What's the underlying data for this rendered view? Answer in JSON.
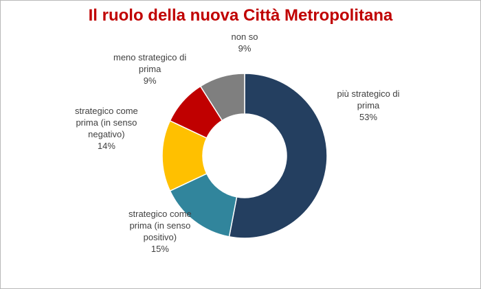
{
  "chart_data": {
    "type": "pie",
    "variant": "donut",
    "title": "Il ruolo della nuova Città Metropolitana",
    "slices": [
      {
        "name": "più strategico di prima",
        "label_lines": [
          "più strategico di",
          "prima"
        ],
        "value": 53,
        "value_label": "53%",
        "color": "#243F60"
      },
      {
        "name": "strategico come prima (in senso positivo)",
        "label_lines": [
          "strategico come",
          "prima (in senso",
          "positivo)"
        ],
        "value": 15,
        "value_label": "15%",
        "color": "#31859C"
      },
      {
        "name": "strategico come prima (in senso negativo)",
        "label_lines": [
          "strategico come",
          "prima (in senso",
          "negativo)"
        ],
        "value": 14,
        "value_label": "14%",
        "color": "#FFC000"
      },
      {
        "name": "meno strategico di prima",
        "label_lines": [
          "meno strategico di",
          "prima"
        ],
        "value": 9,
        "value_label": "9%",
        "color": "#C00000"
      },
      {
        "name": "non so",
        "label_lines": [
          "non so"
        ],
        "value": 9,
        "value_label": "9%",
        "color": "#7F7F7F"
      }
    ],
    "legend": "none",
    "data_labels": "outside"
  }
}
